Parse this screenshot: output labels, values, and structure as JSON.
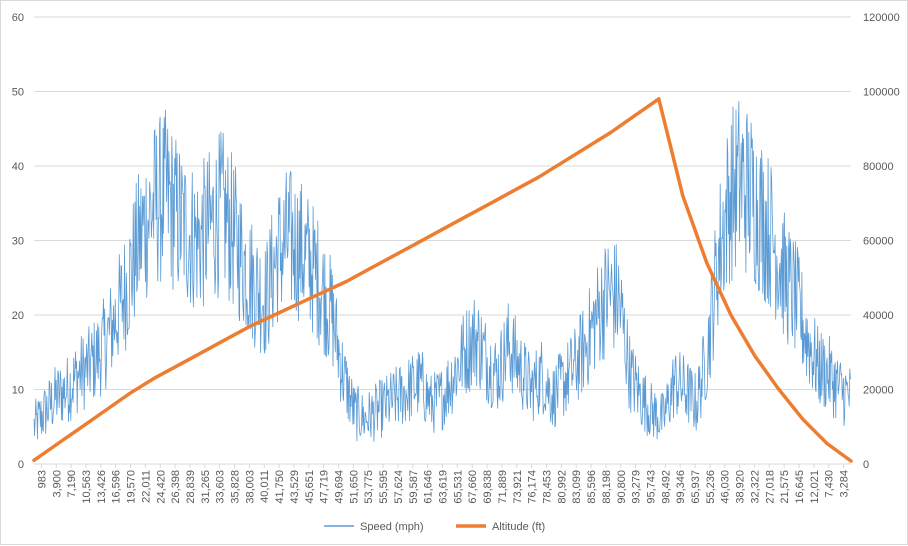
{
  "chart_data": {
    "type": "line",
    "title": "",
    "xlabel": "",
    "ylabel": "",
    "y2label": "",
    "ylim": [
      0,
      60
    ],
    "y2lim": [
      0,
      120000
    ],
    "y_ticks": [
      0,
      10,
      20,
      30,
      40,
      50,
      60
    ],
    "y2_ticks": [
      0,
      20000,
      40000,
      60000,
      80000,
      100000,
      120000
    ],
    "x_tick_labels": [
      "983",
      "3,900",
      "7,190",
      "10,563",
      "13,426",
      "16,596",
      "19,570",
      "22,011",
      "24,420",
      "26,398",
      "28,839",
      "31,265",
      "33,603",
      "35,828",
      "38,003",
      "40,011",
      "41,750",
      "43,529",
      "45,651",
      "47,719",
      "49,694",
      "51,650",
      "53,775",
      "55,595",
      "57,624",
      "59,587",
      "61,646",
      "63,619",
      "65,531",
      "67,660",
      "69,838",
      "71,889",
      "73,921",
      "76,174",
      "78,453",
      "80,992",
      "83,099",
      "85,596",
      "88,198",
      "90,800",
      "93,279",
      "95,743",
      "98,492",
      "99,346",
      "65,937",
      "55,236",
      "46,030",
      "38,920",
      "32,322",
      "27,018",
      "21,575",
      "16,645",
      "12,021",
      "7,430",
      "3,284"
    ],
    "gridlines": true,
    "legend_position": "bottom",
    "series": [
      {
        "name": "Speed (mph)",
        "axis": "left",
        "color": "#5b9bd5",
        "style": "noisy line",
        "values": [
          5,
          7,
          9,
          10,
          12,
          13,
          15,
          18,
          22,
          27,
          32,
          35,
          36,
          33,
          31,
          30,
          32,
          34,
          31,
          27,
          24,
          22,
          28,
          30,
          29,
          27,
          24,
          20,
          12,
          7,
          6,
          7,
          8,
          9,
          10,
          11,
          8,
          9,
          12,
          15,
          17,
          14,
          12,
          16,
          13,
          10,
          12,
          9,
          11,
          13,
          16,
          20,
          23,
          22,
          12,
          9,
          7,
          6,
          11,
          10,
          8,
          15,
          28,
          36,
          38,
          36,
          33,
          30,
          25,
          22,
          17,
          13,
          12,
          10,
          9
        ]
      },
      {
        "name": "Altitude (ft)",
        "axis": "right",
        "color": "#ed7d31",
        "style": "thick line",
        "values": [
          1000,
          5500,
          10000,
          14500,
          19000,
          23000,
          26500,
          30000,
          33500,
          37000,
          40000,
          43000,
          46000,
          49000,
          52500,
          56000,
          59500,
          63000,
          66500,
          70000,
          73500,
          77000,
          81000,
          85000,
          89000,
          93500,
          98000,
          72000,
          54000,
          40000,
          29000,
          20000,
          12000,
          5500,
          800
        ]
      }
    ]
  }
}
